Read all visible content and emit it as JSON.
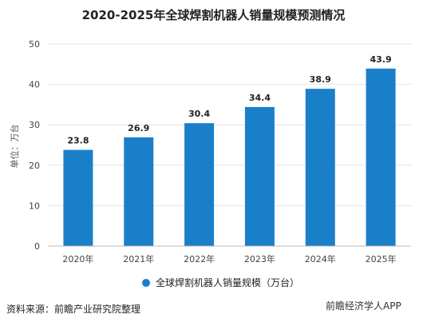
{
  "chart_data": {
    "type": "bar",
    "title": "2020-2025年全球焊割机器人销量规模预测情况",
    "categories": [
      "2020年",
      "2021年",
      "2022年",
      "2023年",
      "2024年",
      "2025年"
    ],
    "series": [
      {
        "name": "全球焊割机器人销量规模（万台）",
        "values": [
          23.8,
          26.9,
          30.4,
          34.4,
          38.9,
          43.9
        ]
      }
    ],
    "ylabel": "单位：万台",
    "ylim": [
      0,
      50
    ],
    "yticks": [
      0,
      10,
      20,
      30,
      40,
      50
    ],
    "grid": true,
    "legend_position": "bottom",
    "bar_color": "#1a7fc9"
  },
  "source_note": "资料来源：前瞻产业研究院整理",
  "watermark": "前瞻经济学人APP"
}
